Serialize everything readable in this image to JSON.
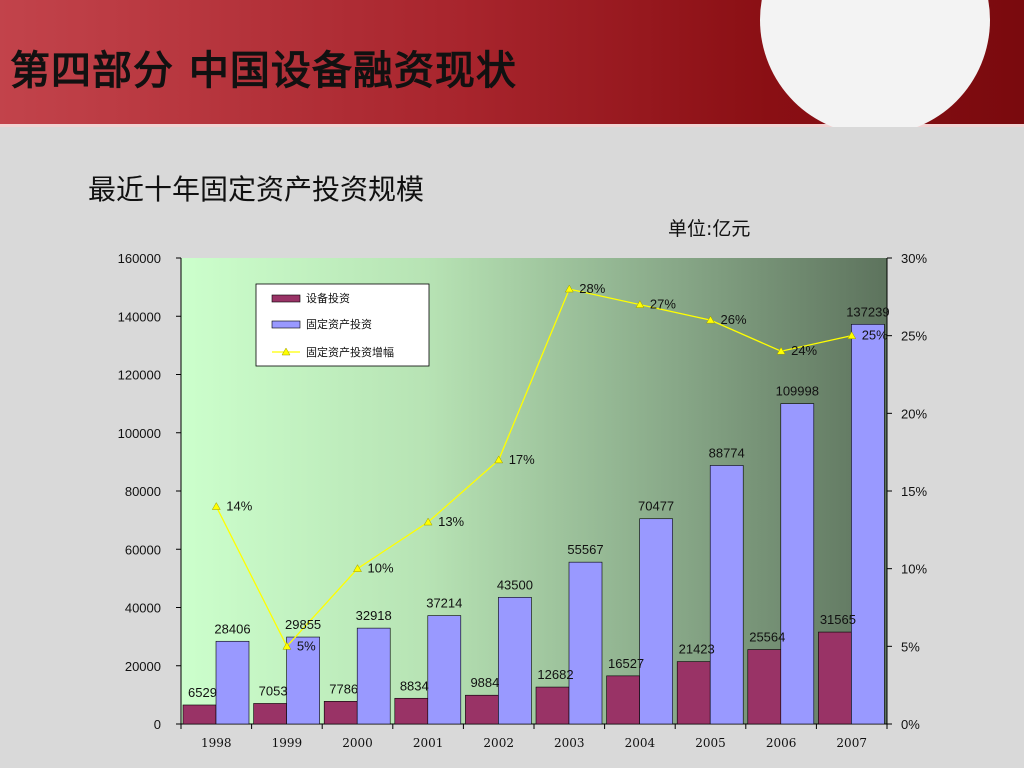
{
  "slide": {
    "title": "第四部分  中国设备融资现状",
    "subtitle": "最近十年固定资产投资规模",
    "unit": "单位:亿元"
  },
  "colors": {
    "equipment": "#993366",
    "fixed_asset": "#9999ff",
    "growth_line": "#ffff00",
    "growth_marker": "#ffff00"
  },
  "chart_data": {
    "type": "bar",
    "categories": [
      "1998",
      "1999",
      "2000",
      "2001",
      "2002",
      "2003",
      "2004",
      "2005",
      "2006",
      "2007"
    ],
    "series": [
      {
        "name": "设备投资",
        "type": "bar",
        "axis": "left",
        "values": [
          6529,
          7053,
          7786,
          8834,
          9884,
          12682,
          16527,
          21423,
          25564,
          31565
        ],
        "labels": [
          "6529",
          "7053",
          "7786",
          "8834",
          "9884",
          "12682",
          "16527",
          "21423",
          "25564",
          "31565"
        ]
      },
      {
        "name": "固定资产投资",
        "type": "bar",
        "axis": "left",
        "values": [
          28406,
          29855,
          32918,
          37214,
          43500,
          55567,
          70477,
          88774,
          109998,
          137239
        ],
        "labels": [
          "28406",
          "29855",
          "32918",
          "37214",
          "43500",
          "55567",
          "70477",
          "88774",
          "109998",
          "137239"
        ]
      },
      {
        "name": "固定资产投资增幅",
        "type": "line",
        "axis": "right",
        "values": [
          14,
          5,
          10,
          13,
          17,
          28,
          27,
          26,
          24,
          25
        ],
        "labels": [
          "14%",
          "5%",
          "10%",
          "13%",
          "17%",
          "28%",
          "27%",
          "26%",
          "24%",
          "25%"
        ]
      }
    ],
    "y_left": {
      "min": 0,
      "max": 160000,
      "ticks": [
        "160000",
        "140000",
        "120000",
        "100000",
        "80000",
        "60000",
        "40000",
        "20000",
        "0"
      ]
    },
    "y_right": {
      "min": 0,
      "max": 30,
      "ticks": [
        "30%",
        "25%",
        "20%",
        "15%",
        "10%",
        "5%",
        "0%"
      ]
    },
    "legend_position": "top-left",
    "grid": false
  }
}
